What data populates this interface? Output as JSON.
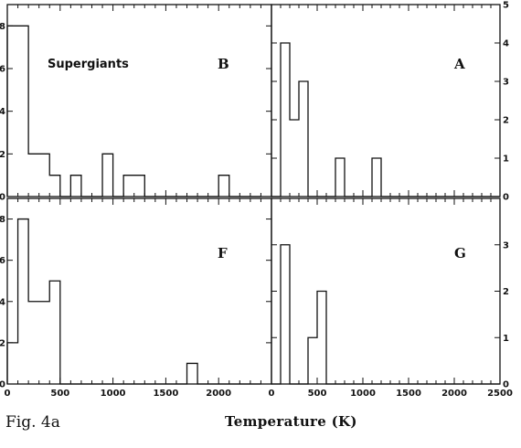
{
  "figure": {
    "caption": "Fig. 4a",
    "xlabel": "Temperature (K)",
    "annotation": "Supergiants"
  },
  "chart_data": [
    {
      "type": "bar",
      "panel": "B",
      "label": "B",
      "annotation": "Supergiants",
      "bin_width_K": 100,
      "x": [
        0,
        100,
        200,
        300,
        400,
        500,
        600,
        700,
        800,
        900,
        1000,
        1100,
        1200,
        1300,
        1400,
        1500,
        1600,
        1700,
        1800,
        1900,
        2000,
        2100,
        2200,
        2300
      ],
      "values": [
        8,
        8,
        2,
        2,
        1,
        0,
        1,
        0,
        0,
        2,
        0,
        1,
        1,
        0,
        0,
        0,
        0,
        0,
        0,
        0,
        1,
        0,
        0,
        0
      ],
      "xlim": [
        0,
        2500
      ],
      "ylim": [
        0,
        9
      ],
      "yticks": [
        0,
        2,
        4,
        6,
        8
      ],
      "xticks": [
        0,
        500,
        1000,
        1500,
        2000
      ],
      "ytick_side": "left"
    },
    {
      "type": "bar",
      "panel": "A",
      "label": "A",
      "bin_width_K": 100,
      "x": [
        0,
        100,
        200,
        300,
        400,
        500,
        600,
        700,
        800,
        900,
        1000,
        1100,
        1200,
        1300,
        1400,
        1500,
        1600,
        1700,
        1800,
        1900,
        2000,
        2100,
        2200,
        2300,
        2400
      ],
      "values": [
        0,
        4,
        2,
        3,
        0,
        0,
        0,
        1,
        0,
        0,
        0,
        1,
        0,
        0,
        0,
        0,
        0,
        0,
        0,
        0,
        0,
        0,
        0,
        0,
        0
      ],
      "xlim": [
        0,
        2500
      ],
      "ylim": [
        0,
        5
      ],
      "yticks": [
        0,
        1,
        2,
        3,
        4,
        5
      ],
      "xticks": [
        0,
        500,
        1000,
        1500,
        2000,
        2500
      ],
      "ytick_side": "right"
    },
    {
      "type": "bar",
      "panel": "F",
      "label": "F",
      "bin_width_K": 100,
      "x": [
        0,
        100,
        200,
        300,
        400,
        500,
        600,
        700,
        800,
        900,
        1000,
        1100,
        1200,
        1300,
        1400,
        1500,
        1600,
        1700,
        1800,
        1900,
        2000,
        2100,
        2200,
        2300
      ],
      "values": [
        2,
        8,
        4,
        4,
        5,
        0,
        0,
        0,
        0,
        0,
        0,
        0,
        0,
        0,
        0,
        0,
        0,
        1,
        0,
        0,
        0,
        0,
        0,
        0
      ],
      "xlim": [
        0,
        2500
      ],
      "ylim": [
        0,
        9
      ],
      "yticks": [
        0,
        2,
        4,
        6,
        8
      ],
      "xticks": [
        0,
        500,
        1000,
        1500,
        2000
      ],
      "xticklabels": [
        "0",
        "500",
        "1000",
        "1500",
        "2000"
      ],
      "ytick_side": "left"
    },
    {
      "type": "bar",
      "panel": "G",
      "label": "G",
      "bin_width_K": 100,
      "x": [
        0,
        100,
        200,
        300,
        400,
        500,
        600,
        700,
        800,
        900,
        1000,
        1100,
        1200,
        1300,
        1400,
        1500,
        1600,
        1700,
        1800,
        1900,
        2000,
        2100,
        2200,
        2300,
        2400
      ],
      "values": [
        0,
        3,
        0,
        0,
        1,
        2,
        0,
        0,
        0,
        0,
        0,
        0,
        0,
        0,
        0,
        0,
        0,
        0,
        0,
        0,
        0,
        0,
        0,
        0,
        0
      ],
      "xlim": [
        0,
        2500
      ],
      "ylim": [
        0,
        4
      ],
      "yticks": [
        0,
        1,
        2,
        3
      ],
      "xticks": [
        0,
        500,
        1000,
        1500,
        2000,
        2500
      ],
      "xticklabels": [
        "0",
        "500",
        "1000",
        "1500",
        "2000",
        "2500"
      ],
      "ytick_side": "right"
    }
  ]
}
